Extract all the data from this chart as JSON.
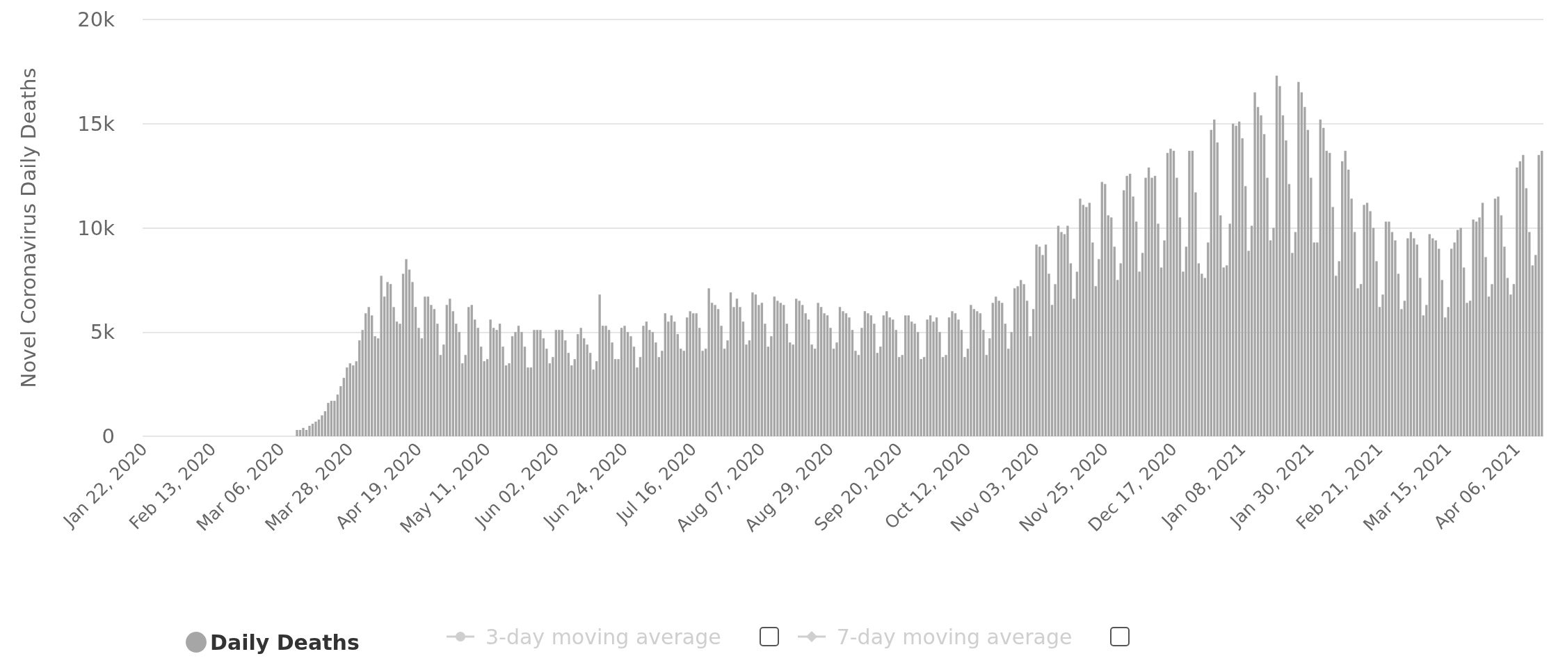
{
  "chart_data": {
    "type": "bar",
    "ylabel": "Novel Coronavirus Daily Deaths",
    "ylim": [
      0,
      20000
    ],
    "yticks": [
      {
        "value": 0,
        "label": "0"
      },
      {
        "value": 5000,
        "label": "5k"
      },
      {
        "value": 10000,
        "label": "10k"
      },
      {
        "value": 15000,
        "label": "15k"
      },
      {
        "value": 20000,
        "label": "20k"
      }
    ],
    "grid": "y",
    "legend": "bottom",
    "annotations": [
      "3-day moving average",
      "7-day moving average"
    ],
    "categories": [
      "Jan 22, 2020",
      null,
      null,
      null,
      null,
      null,
      null,
      null,
      null,
      null,
      null,
      null,
      null,
      null,
      null,
      null,
      null,
      null,
      null,
      null,
      null,
      null,
      "Feb 13, 2020",
      null,
      null,
      null,
      null,
      null,
      null,
      null,
      null,
      null,
      null,
      null,
      null,
      null,
      null,
      null,
      null,
      null,
      null,
      null,
      null,
      null,
      "Mar 06, 2020",
      null,
      null,
      null,
      null,
      null,
      null,
      null,
      null,
      null,
      null,
      null,
      null,
      null,
      null,
      null,
      null,
      null,
      null,
      null,
      null,
      null,
      "Mar 28, 2020",
      null,
      null,
      null,
      null,
      null,
      null,
      null,
      null,
      null,
      null,
      null,
      null,
      null,
      null,
      null,
      null,
      null,
      null,
      null,
      null,
      null,
      "Apr 19, 2020",
      null,
      null,
      null,
      null,
      null,
      null,
      null,
      null,
      null,
      null,
      null,
      null,
      null,
      null,
      null,
      null,
      null,
      null,
      null,
      null,
      null,
      "May 11, 2020",
      null,
      null,
      null,
      null,
      null,
      null,
      null,
      null,
      null,
      null,
      null,
      null,
      null,
      null,
      null,
      null,
      null,
      null,
      null,
      null,
      null,
      "Jun 02, 2020",
      null,
      null,
      null,
      null,
      null,
      null,
      null,
      null,
      null,
      null,
      null,
      null,
      null,
      null,
      null,
      null,
      null,
      null,
      null,
      null,
      null,
      "Jun 24, 2020",
      null,
      null,
      null,
      null,
      null,
      null,
      null,
      null,
      null,
      null,
      null,
      null,
      null,
      null,
      null,
      null,
      null,
      null,
      null,
      null,
      null,
      "Jul 16, 2020",
      null,
      null,
      null,
      null,
      null,
      null,
      null,
      null,
      null,
      null,
      null,
      null,
      null,
      null,
      null,
      null,
      null,
      null,
      null,
      null,
      null,
      "Aug 07, 2020",
      null,
      null,
      null,
      null,
      null,
      null,
      null,
      null,
      null,
      null,
      null,
      null,
      null,
      null,
      null,
      null,
      null,
      null,
      null,
      null,
      null,
      "Aug 29, 2020",
      null,
      null,
      null,
      null,
      null,
      null,
      null,
      null,
      null,
      null,
      null,
      null,
      null,
      null,
      null,
      null,
      null,
      null,
      null,
      null,
      null,
      "Sep 20, 2020",
      null,
      null,
      null,
      null,
      null,
      null,
      null,
      null,
      null,
      null,
      null,
      null,
      null,
      null,
      null,
      null,
      null,
      null,
      null,
      null,
      null,
      "Oct 12, 2020",
      null,
      null,
      null,
      null,
      null,
      null,
      null,
      null,
      null,
      null,
      null,
      null,
      null,
      null,
      null,
      null,
      null,
      null,
      null,
      null,
      null,
      "Nov 03, 2020",
      null,
      null,
      null,
      null,
      null,
      null,
      null,
      null,
      null,
      null,
      null,
      null,
      null,
      null,
      null,
      null,
      null,
      null,
      null,
      null,
      null,
      "Nov 25, 2020",
      null,
      null,
      null,
      null,
      null,
      null,
      null,
      null,
      null,
      null,
      null,
      null,
      null,
      null,
      null,
      null,
      null,
      null,
      null,
      null,
      null,
      "Dec 17, 2020",
      null,
      null,
      null,
      null,
      null,
      null,
      null,
      null,
      null,
      null,
      null,
      null,
      null,
      null,
      null,
      null,
      null,
      null,
      null,
      null,
      null,
      "Jan 08, 2021",
      null,
      null,
      null,
      null,
      null,
      null,
      null,
      null,
      null,
      null,
      null,
      null,
      null,
      null,
      null,
      null,
      null,
      null,
      null,
      null,
      null,
      "Jan 30, 2021",
      null,
      null,
      null,
      null,
      null,
      null,
      null,
      null,
      null,
      null,
      null,
      null,
      null,
      null,
      null,
      null,
      null,
      null,
      null,
      null,
      null,
      "Feb 21, 2021",
      null,
      null,
      null,
      null,
      null,
      null,
      null,
      null,
      null,
      null,
      null,
      null,
      null,
      null,
      null,
      null,
      null,
      null,
      null,
      null,
      null,
      "Mar 15, 2021",
      null,
      null,
      null,
      null,
      null,
      null,
      null,
      null,
      null,
      null,
      null,
      null,
      null,
      null,
      null,
      null,
      null,
      null,
      null,
      null,
      null,
      "Apr 06, 2021",
      null,
      null,
      null,
      null,
      null,
      null,
      null,
      null
    ],
    "series": [
      {
        "name": "Daily Deaths",
        "color": "#a6a6a6",
        "values": [
          0,
          0,
          0,
          0,
          0,
          0,
          0,
          0,
          0,
          0,
          0,
          0,
          0,
          0,
          0,
          0,
          0,
          0,
          0,
          0,
          0,
          0,
          0,
          0,
          0,
          0,
          0,
          0,
          0,
          0,
          0,
          0,
          0,
          0,
          0,
          0,
          0,
          0,
          0,
          0,
          0,
          0,
          0,
          0,
          0,
          0,
          0,
          0,
          0,
          300,
          300,
          400,
          300,
          500,
          600,
          700,
          800,
          1000,
          1200,
          1600,
          1700,
          1700,
          2000,
          2400,
          2800,
          3300,
          3500,
          3400,
          3600,
          4600,
          5100,
          5900,
          6200,
          5800,
          4800,
          4700,
          7700,
          6700,
          7400,
          7300,
          6200,
          5500,
          5400,
          7800,
          8500,
          8000,
          7400,
          6200,
          5200,
          4700,
          6700,
          6700,
          6300,
          6100,
          5400,
          3900,
          4400,
          6300,
          6600,
          6000,
          5400,
          5000,
          3500,
          3900,
          6200,
          6300,
          5600,
          5200,
          4300,
          3600,
          3700,
          5600,
          5200,
          5100,
          5400,
          4300,
          3400,
          3500,
          4800,
          5000,
          5300,
          5000,
          4300,
          3300,
          3300,
          5100,
          5100,
          5100,
          4700,
          4200,
          3500,
          3800,
          5100,
          5100,
          5100,
          4600,
          4000,
          3400,
          3700,
          4900,
          5200,
          4700,
          4400,
          4000,
          3200,
          3600,
          6800,
          5300,
          5300,
          5100,
          4500,
          3700,
          3700,
          5200,
          5300,
          5000,
          4800,
          4300,
          3300,
          3800,
          5300,
          5500,
          5100,
          5000,
          4500,
          3800,
          4100,
          5900,
          5500,
          5800,
          5500,
          4900,
          4200,
          4100,
          5700,
          6000,
          5900,
          5900,
          5200,
          4100,
          4200,
          7100,
          6400,
          6300,
          6100,
          5300,
          4200,
          4600,
          6900,
          6200,
          6600,
          6200,
          5500,
          4400,
          4600,
          6900,
          6800,
          6300,
          6400,
          5400,
          4300,
          4800,
          6700,
          6500,
          6400,
          6300,
          5400,
          4500,
          4400,
          6600,
          6500,
          6300,
          5900,
          5600,
          4400,
          4200,
          6400,
          6200,
          5900,
          5800,
          5200,
          4200,
          4500,
          6200,
          6000,
          5900,
          5700,
          5100,
          4100,
          3900,
          5200,
          6000,
          5900,
          5800,
          5400,
          4000,
          4300,
          5800,
          6000,
          5700,
          5600,
          5100,
          3800,
          3900,
          5800,
          5800,
          5500,
          5400,
          5000,
          3700,
          3800,
          5600,
          5800,
          5500,
          5700,
          5000,
          3800,
          3900,
          5700,
          6000,
          5900,
          5600,
          5100,
          3800,
          4200,
          6300,
          6100,
          6000,
          5900,
          5100,
          3900,
          4700,
          6400,
          6700,
          6500,
          6400,
          5400,
          4200,
          5000,
          7100,
          7200,
          7500,
          7300,
          6500,
          4800,
          6100,
          9200,
          9100,
          8700,
          9200,
          7800,
          6300,
          7300,
          10100,
          9800,
          9700,
          10100,
          8300,
          6600,
          7900,
          11400,
          11100,
          11000,
          11200,
          9300,
          7200,
          8500,
          12200,
          12100,
          10600,
          10500,
          9100,
          7500,
          8300,
          11800,
          12500,
          12600,
          11500,
          10300,
          7900,
          8800,
          12400,
          12900,
          12400,
          12500,
          10200,
          8100,
          9400,
          13600,
          13800,
          13700,
          12400,
          10500,
          7900,
          9100,
          13700,
          13700,
          11700,
          8300,
          7800,
          7600,
          9300,
          14700,
          15200,
          14100,
          10600,
          8100,
          8200,
          10200,
          15000,
          14900,
          15100,
          14300,
          12000,
          8900,
          10100,
          16500,
          15800,
          15400,
          14500,
          12400,
          9400,
          10000,
          17300,
          16800,
          15400,
          14200,
          12100,
          8800,
          9800,
          17000,
          16500,
          15800,
          14700,
          12400,
          9300,
          9300,
          15200,
          14800,
          13700,
          13600,
          11000,
          7700,
          8400,
          13200,
          13700,
          12800,
          11400,
          9800,
          7100,
          7300,
          11100,
          11200,
          10800,
          10000,
          8400,
          6200,
          6800,
          10300,
          10300,
          9800,
          9400,
          7800,
          6100,
          6500,
          9500,
          9800,
          9500,
          9200,
          7600,
          5800,
          6300,
          9700,
          9500,
          9400,
          9000,
          7500,
          5700,
          6200,
          9000,
          9300,
          9900,
          10000,
          8100,
          6400,
          6500,
          10400,
          10300,
          10500,
          11200,
          8600,
          6700,
          7300,
          11400,
          11500,
          10600,
          9100,
          7600,
          6800,
          7300,
          12900,
          13200,
          13500,
          11900,
          9800,
          8200,
          8700,
          13500,
          13700
        ]
      }
    ]
  }
}
